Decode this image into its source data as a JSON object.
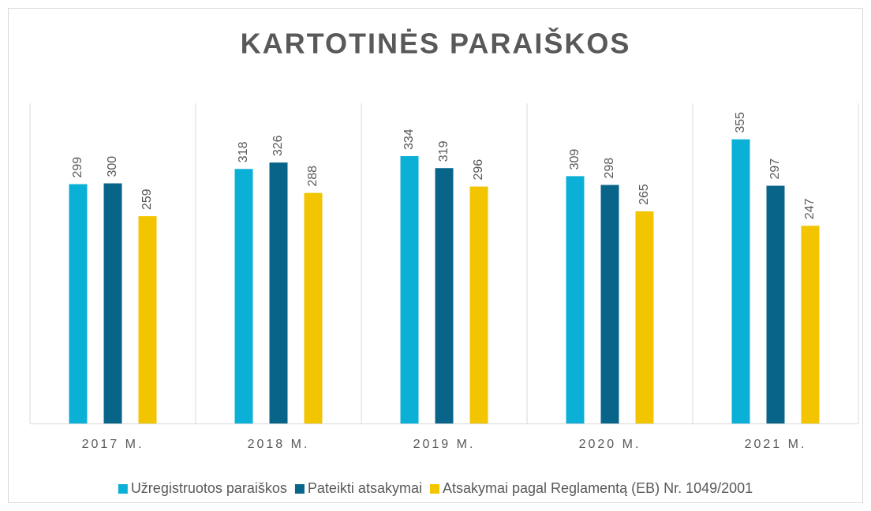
{
  "chart_data": {
    "type": "bar",
    "title": "KARTOTINĖS PARAIŠKOS",
    "categories": [
      "2017 M.",
      "2018 M.",
      "2019 M.",
      "2020 M.",
      "2021 M."
    ],
    "series": [
      {
        "name": "Užregistruotos paraiškos",
        "color": "#0bb0d6",
        "values": [
          299,
          318,
          334,
          309,
          355
        ]
      },
      {
        "name": "Pateikti atsakymai",
        "color": "#086589",
        "values": [
          300,
          326,
          319,
          298,
          297
        ]
      },
      {
        "name": "Atsakymai pagal Reglamentą (EB) Nr. 1049/2001",
        "color": "#f2c500",
        "values": [
          259,
          288,
          296,
          265,
          247
        ]
      }
    ],
    "ylim": [
      0,
      400
    ],
    "legend": "bottom"
  }
}
